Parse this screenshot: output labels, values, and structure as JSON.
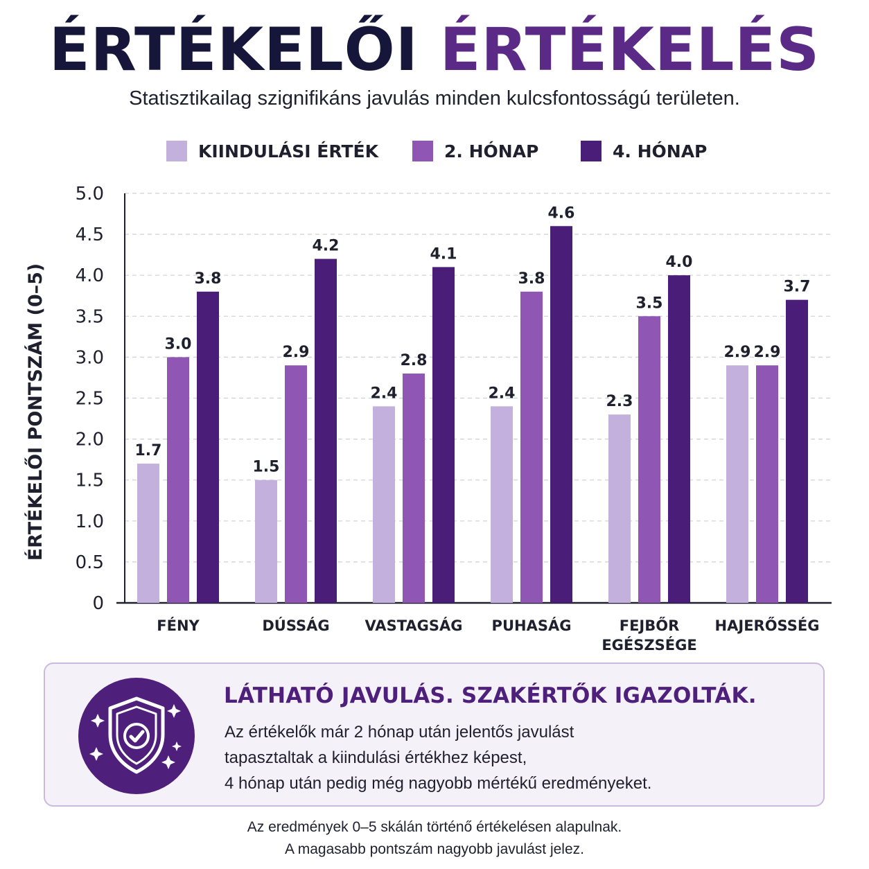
{
  "header": {
    "title_part1": "ÉRTÉKELŐI",
    "title_part2": "ÉRTÉKELÉS",
    "subtitle": "Statisztikailag szignifikáns javulás minden kulcsfontosságú területen."
  },
  "colors": {
    "baseline": "#c4b0dd",
    "month2": "#8f56b3",
    "month4": "#4a1d78",
    "title_dark": "#16163a",
    "title_accent": "#5b2a86"
  },
  "chart_data": {
    "type": "bar",
    "categories": [
      [
        "FÉNY"
      ],
      [
        "DÚSSÁG"
      ],
      [
        "VASTAGSÁG"
      ],
      [
        "PUHASÁG"
      ],
      [
        "FEJBŐR",
        "EGÉSZSÉGE"
      ],
      [
        "HAJERŐSSÉG"
      ]
    ],
    "series": [
      {
        "name": "KIINDULÁSI ÉRTÉK",
        "values": [
          1.7,
          1.5,
          2.4,
          2.4,
          2.3,
          2.9
        ]
      },
      {
        "name": "2. HÓNAP",
        "values": [
          3.0,
          2.9,
          2.8,
          3.8,
          3.5,
          2.9
        ]
      },
      {
        "name": "4. HÓNAP",
        "values": [
          3.8,
          4.2,
          4.1,
          4.6,
          4.0,
          3.7
        ]
      }
    ],
    "ylabel": "ÉRTÉKELŐI PONTSZÁM (0–5)",
    "xlabel": "",
    "ylim": [
      0,
      5
    ],
    "yticks": [
      "0",
      "0.5",
      "1.0",
      "1.5",
      "2.0",
      "2.5",
      "3.0",
      "3.5",
      "4.0",
      "4.5",
      "5.0"
    ],
    "grid": true,
    "legend_position": "top"
  },
  "callout": {
    "icon": "shield-check-icon",
    "title": "LÁTHATÓ JAVULÁS. SZAKÉRTŐK IGAZOLTÁK.",
    "lines": [
      "Az értékelők már 2 hónap után jelentős javulást",
      "tapasztaltak a kiindulási értékhez képest,",
      "4 hónap után pedig még nagyobb mértékű eredményeket."
    ]
  },
  "footnote": {
    "line1": "Az eredmények 0–5 skálán történő értékelésen alapulnak.",
    "line2": "A magasabb pontszám nagyobb javulást jelez."
  }
}
